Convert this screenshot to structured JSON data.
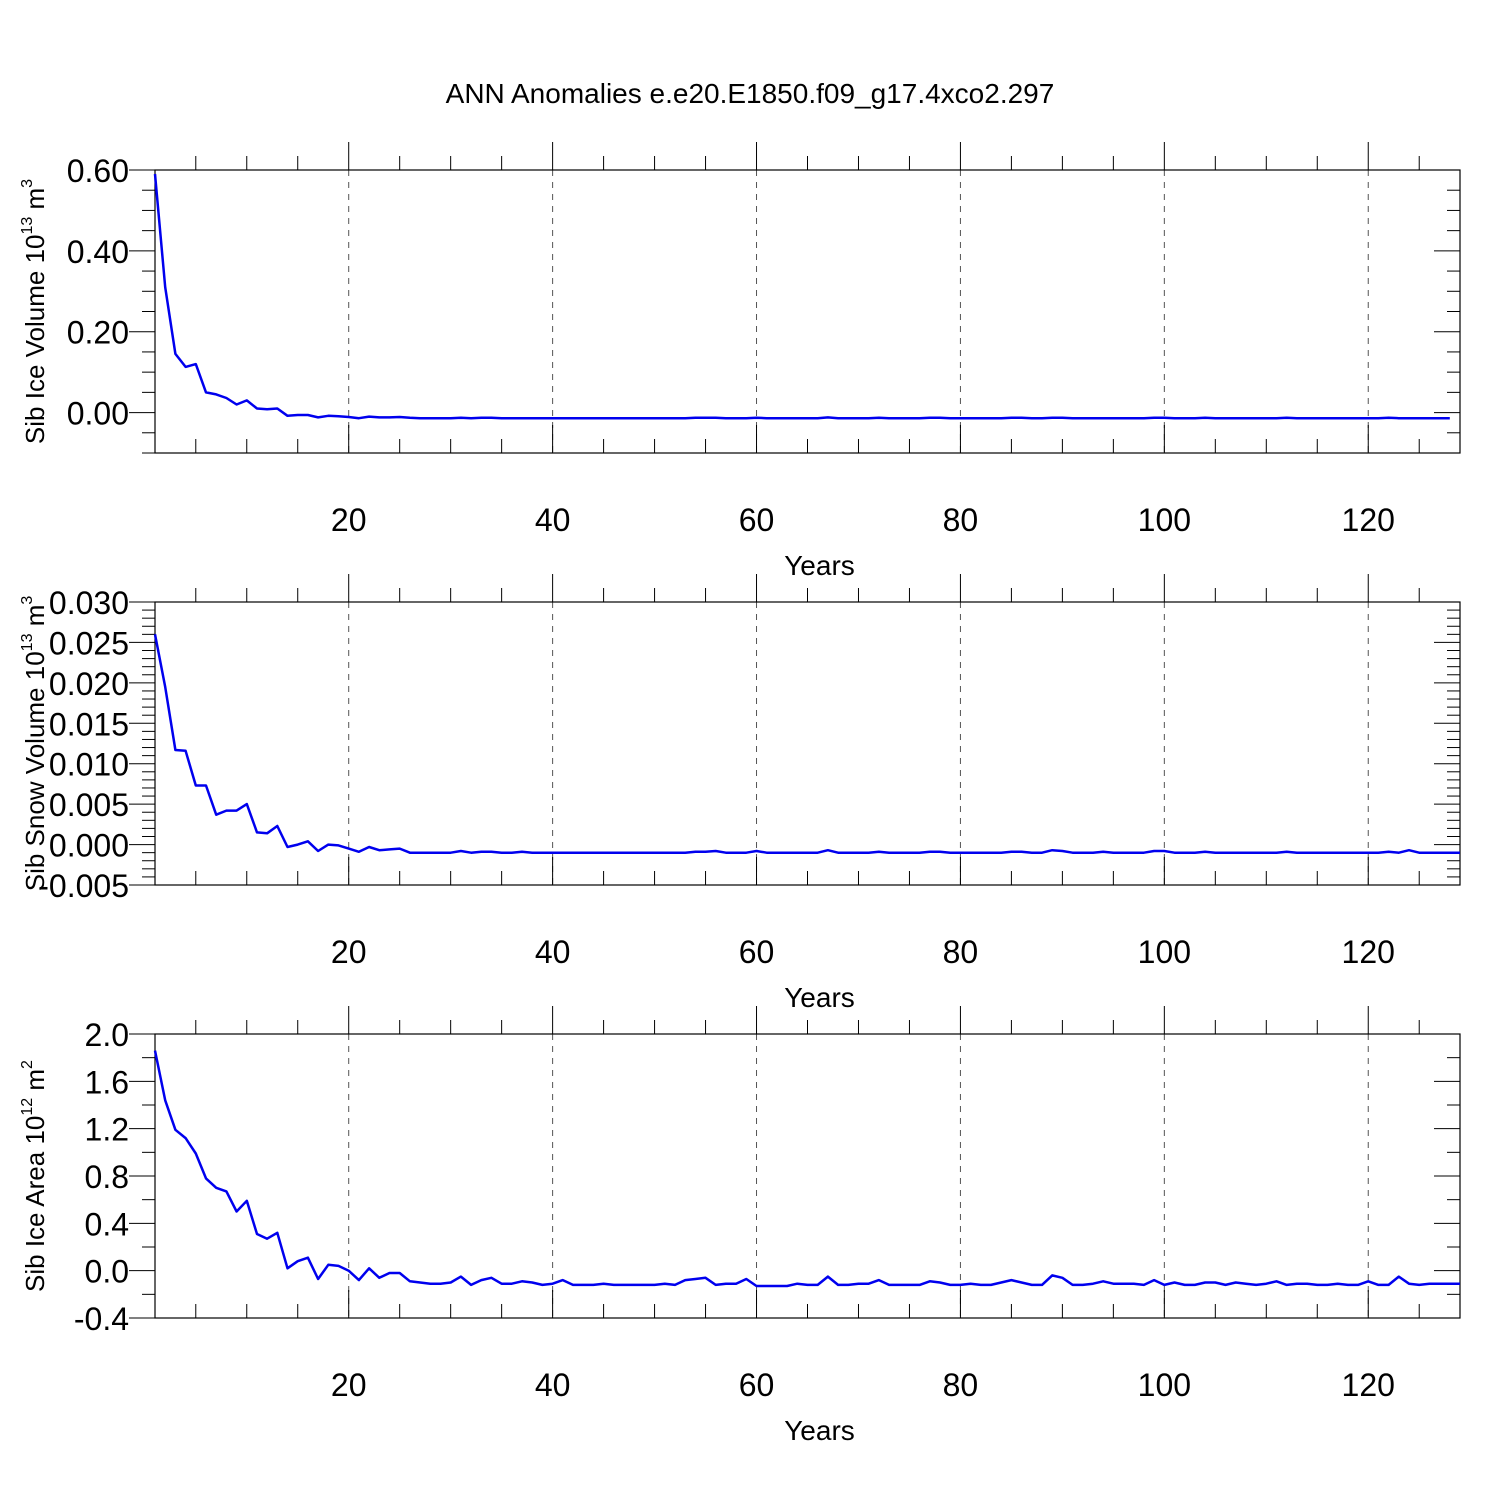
{
  "title": "ANN Anomalies e.e20.E1850.f09_g17.4xco2.297",
  "colors": {
    "line": "#0000ee",
    "frame": "#000000",
    "grid": "#555555"
  },
  "chart_data": [
    {
      "type": "line",
      "xlabel": "Years",
      "ylabel_text": "Sib Ice Volume 10",
      "ylabel_exp": "13",
      "ylabel_unit": " m",
      "ylabel_unit_exp": "3",
      "xlim": [
        1,
        129
      ],
      "ylim": [
        -0.1,
        0.6
      ],
      "yticks": [
        0.0,
        0.2,
        0.4,
        0.6
      ],
      "ytick_labels": [
        "0.00",
        "0.20",
        "0.40",
        "0.60"
      ],
      "xticks": [
        20,
        40,
        60,
        80,
        100,
        120
      ],
      "xtick_labels": [
        "20",
        "40",
        "60",
        "80",
        "100",
        "120"
      ],
      "grid": "vertical dashed at major x ticks",
      "y_start": 1,
      "values": [
        0.59,
        0.31,
        0.145,
        0.113,
        0.12,
        0.05,
        0.045,
        0.036,
        0.02,
        0.03,
        0.01,
        0.008,
        0.01,
        -0.008,
        -0.006,
        -0.006,
        -0.012,
        -0.008,
        -0.009,
        -0.011,
        -0.014,
        -0.01,
        -0.012,
        -0.012,
        -0.011,
        -0.013,
        -0.014,
        -0.014,
        -0.014,
        -0.014,
        -0.013,
        -0.014,
        -0.013,
        -0.013,
        -0.014,
        -0.014,
        -0.014,
        -0.014,
        -0.014,
        -0.014,
        -0.014,
        -0.014,
        -0.014,
        -0.014,
        -0.014,
        -0.014,
        -0.014,
        -0.014,
        -0.014,
        -0.014,
        -0.014,
        -0.014,
        -0.014,
        -0.013,
        -0.013,
        -0.013,
        -0.014,
        -0.014,
        -0.014,
        -0.013,
        -0.014,
        -0.014,
        -0.014,
        -0.014,
        -0.014,
        -0.014,
        -0.012,
        -0.014,
        -0.014,
        -0.014,
        -0.014,
        -0.013,
        -0.014,
        -0.014,
        -0.014,
        -0.014,
        -0.013,
        -0.013,
        -0.014,
        -0.014,
        -0.014,
        -0.014,
        -0.014,
        -0.014,
        -0.013,
        -0.013,
        -0.014,
        -0.014,
        -0.013,
        -0.013,
        -0.014,
        -0.014,
        -0.014,
        -0.014,
        -0.014,
        -0.014,
        -0.014,
        -0.014,
        -0.013,
        -0.013,
        -0.014,
        -0.014,
        -0.014,
        -0.013,
        -0.014,
        -0.014,
        -0.014,
        -0.014,
        -0.014,
        -0.014,
        -0.014,
        -0.013,
        -0.014,
        -0.014,
        -0.014,
        -0.014,
        -0.014,
        -0.014,
        -0.014,
        -0.014,
        -0.014,
        -0.013,
        -0.014,
        -0.014,
        -0.014,
        -0.014,
        -0.014,
        -0.014
      ]
    },
    {
      "type": "line",
      "xlabel": "Years",
      "ylabel_text": "Sib Snow Volume 10",
      "ylabel_exp": "13",
      "ylabel_unit": " m",
      "ylabel_unit_exp": "3",
      "xlim": [
        1,
        129
      ],
      "ylim": [
        -0.005,
        0.03
      ],
      "yticks": [
        -0.005,
        0.0,
        0.005,
        0.01,
        0.015,
        0.02,
        0.025,
        0.03
      ],
      "ytick_labels": [
        "-0.005",
        "0.000",
        "0.005",
        "0.010",
        "0.015",
        "0.020",
        "0.025",
        "0.030"
      ],
      "xticks": [
        20,
        40,
        60,
        80,
        100,
        120
      ],
      "xtick_labels": [
        "20",
        "40",
        "60",
        "80",
        "100",
        "120"
      ],
      "grid": "vertical dashed at major x ticks",
      "y_start": 1,
      "values": [
        0.026,
        0.0195,
        0.0117,
        0.0116,
        0.0073,
        0.0073,
        0.0037,
        0.0042,
        0.0042,
        0.005,
        0.0015,
        0.0014,
        0.0023,
        -0.0003,
        0.0,
        0.0004,
        -0.0008,
        0.0,
        -0.0001,
        -0.0005,
        -0.0009,
        -0.0003,
        -0.0007,
        -0.0006,
        -0.0005,
        -0.001,
        -0.001,
        -0.001,
        -0.001,
        -0.001,
        -0.0008,
        -0.001,
        -0.0009,
        -0.0009,
        -0.001,
        -0.001,
        -0.0009,
        -0.001,
        -0.001,
        -0.001,
        -0.001,
        -0.001,
        -0.001,
        -0.001,
        -0.001,
        -0.001,
        -0.001,
        -0.001,
        -0.001,
        -0.001,
        -0.001,
        -0.001,
        -0.001,
        -0.0009,
        -0.0009,
        -0.0008,
        -0.001,
        -0.001,
        -0.001,
        -0.0008,
        -0.001,
        -0.001,
        -0.001,
        -0.001,
        -0.001,
        -0.001,
        -0.0007,
        -0.001,
        -0.001,
        -0.001,
        -0.001,
        -0.0009,
        -0.001,
        -0.001,
        -0.001,
        -0.001,
        -0.0009,
        -0.0009,
        -0.001,
        -0.001,
        -0.001,
        -0.001,
        -0.001,
        -0.001,
        -0.0009,
        -0.0009,
        -0.001,
        -0.001,
        -0.0007,
        -0.0008,
        -0.001,
        -0.001,
        -0.001,
        -0.0009,
        -0.001,
        -0.001,
        -0.001,
        -0.001,
        -0.0008,
        -0.0008,
        -0.001,
        -0.001,
        -0.001,
        -0.0009,
        -0.001,
        -0.001,
        -0.001,
        -0.001,
        -0.001,
        -0.001,
        -0.001,
        -0.0009,
        -0.001,
        -0.001,
        -0.001,
        -0.001,
        -0.001,
        -0.001,
        -0.001,
        -0.001,
        -0.001,
        -0.0009,
        -0.001,
        -0.0007,
        -0.001,
        -0.001,
        -0.001,
        -0.001,
        -0.001
      ]
    },
    {
      "type": "line",
      "xlabel": "Years",
      "ylabel_text": "Sib Ice Area 10",
      "ylabel_exp": "12",
      "ylabel_unit": " m",
      "ylabel_unit_exp": "2",
      "xlim": [
        1,
        129
      ],
      "ylim": [
        -0.4,
        2.0
      ],
      "yticks": [
        -0.4,
        0.0,
        0.4,
        0.8,
        1.2,
        1.6,
        2.0
      ],
      "ytick_labels": [
        "-0.4",
        "0.0",
        "0.4",
        "0.8",
        "1.2",
        "1.6",
        "2.0"
      ],
      "xticks": [
        20,
        40,
        60,
        80,
        100,
        120
      ],
      "xtick_labels": [
        "20",
        "40",
        "60",
        "80",
        "100",
        "120"
      ],
      "grid": "vertical dashed at major x ticks",
      "y_start": 1,
      "values": [
        1.86,
        1.44,
        1.19,
        1.12,
        0.99,
        0.78,
        0.7,
        0.67,
        0.5,
        0.59,
        0.31,
        0.27,
        0.32,
        0.02,
        0.08,
        0.11,
        -0.07,
        0.05,
        0.04,
        0.0,
        -0.08,
        0.02,
        -0.06,
        -0.02,
        -0.02,
        -0.09,
        -0.1,
        -0.11,
        -0.11,
        -0.1,
        -0.05,
        -0.12,
        -0.08,
        -0.06,
        -0.11,
        -0.11,
        -0.09,
        -0.1,
        -0.12,
        -0.11,
        -0.08,
        -0.12,
        -0.12,
        -0.12,
        -0.11,
        -0.12,
        -0.12,
        -0.12,
        -0.12,
        -0.12,
        -0.11,
        -0.12,
        -0.08,
        -0.07,
        -0.06,
        -0.12,
        -0.11,
        -0.11,
        -0.07,
        -0.13,
        -0.13,
        -0.13,
        -0.13,
        -0.11,
        -0.12,
        -0.12,
        -0.05,
        -0.12,
        -0.12,
        -0.11,
        -0.11,
        -0.08,
        -0.12,
        -0.12,
        -0.12,
        -0.12,
        -0.09,
        -0.1,
        -0.12,
        -0.12,
        -0.11,
        -0.12,
        -0.12,
        -0.1,
        -0.08,
        -0.1,
        -0.12,
        -0.12,
        -0.04,
        -0.06,
        -0.12,
        -0.12,
        -0.11,
        -0.09,
        -0.11,
        -0.11,
        -0.11,
        -0.12,
        -0.08,
        -0.12,
        -0.1,
        -0.12,
        -0.12,
        -0.1,
        -0.1,
        -0.12,
        -0.1,
        -0.11,
        -0.12,
        -0.11,
        -0.09,
        -0.12,
        -0.11,
        -0.11,
        -0.12,
        -0.12,
        -0.11,
        -0.12,
        -0.12,
        -0.09,
        -0.12,
        -0.12,
        -0.05,
        -0.11,
        -0.12,
        -0.11,
        -0.11,
        -0.11,
        -0.11
      ]
    }
  ]
}
